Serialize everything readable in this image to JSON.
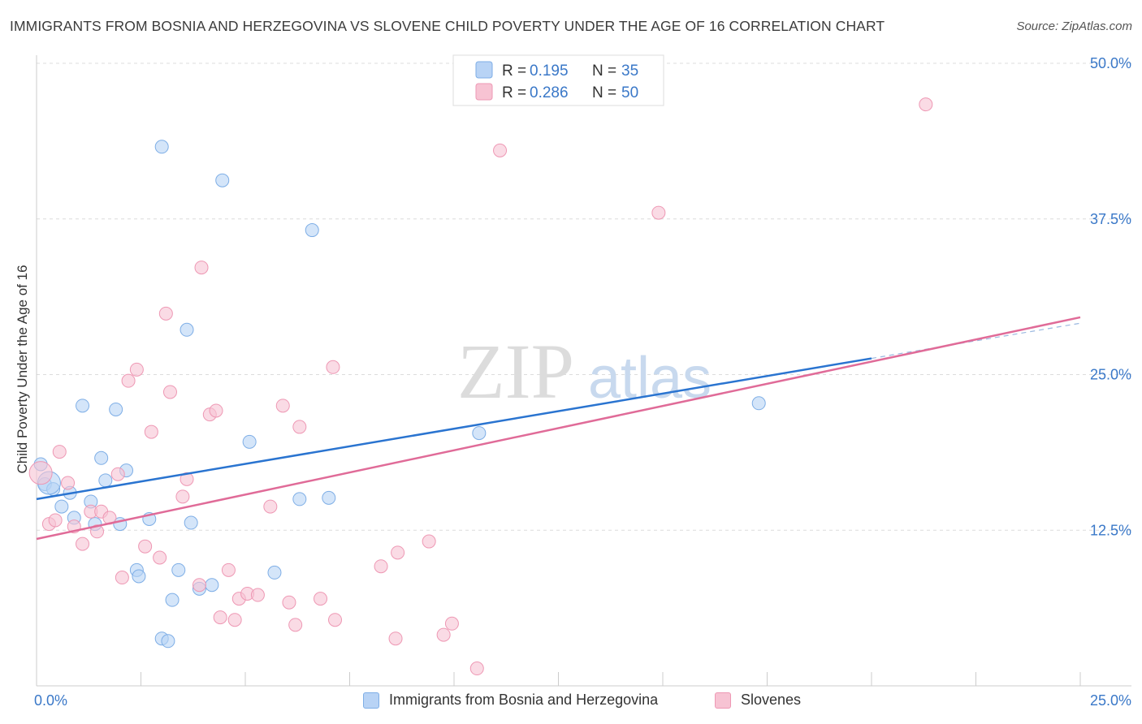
{
  "chart_data": {
    "type": "scatter",
    "title": "IMMIGRANTS FROM BOSNIA AND HERZEGOVINA VS SLOVENE CHILD POVERTY UNDER THE AGE OF 16 CORRELATION CHART",
    "source": "Source: ZipAtlas.com",
    "watermark_main": "ZIP",
    "watermark_sub": "atlas",
    "xlabel": "",
    "ylabel": "Child Poverty Under the Age of 16",
    "xlim": [
      0,
      25
    ],
    "ylim": [
      0,
      50
    ],
    "x_tick_labels": [
      {
        "value": 0,
        "label": "0.0%"
      },
      {
        "value": 25,
        "label": "25.0%"
      }
    ],
    "y_tick_labels": [
      {
        "value": 12.5,
        "label": "12.5%"
      },
      {
        "value": 25,
        "label": "25.0%"
      },
      {
        "value": 37.5,
        "label": "37.5%"
      },
      {
        "value": 50,
        "label": "50.0%"
      }
    ],
    "grid": true,
    "legend_position": "top-center",
    "series": [
      {
        "name": "Immigrants from Bosnia and Herzegovina",
        "r_label": "R =",
        "r_value": "0.195",
        "n_label": "N =",
        "n_value": "35",
        "fill": "#b8d3f5",
        "stroke": "#7eaee6",
        "line_color": "#2a74d0",
        "trend": {
          "x0": 0,
          "y0": 15.0,
          "x1": 20,
          "y1": 26.3,
          "dash_to_x": 25
        },
        "points": [
          [
            0.1,
            17.8
          ],
          [
            0.2,
            16.2
          ],
          [
            0.4,
            15.8
          ],
          [
            0.6,
            14.4
          ],
          [
            0.8,
            15.5
          ],
          [
            0.9,
            13.5
          ],
          [
            1.1,
            22.5
          ],
          [
            1.3,
            14.8
          ],
          [
            1.4,
            13.0
          ],
          [
            1.55,
            18.3
          ],
          [
            1.65,
            16.5
          ],
          [
            1.9,
            22.2
          ],
          [
            2.0,
            13.0
          ],
          [
            2.15,
            17.3
          ],
          [
            2.4,
            9.3
          ],
          [
            2.45,
            8.8
          ],
          [
            2.7,
            13.4
          ],
          [
            3.0,
            3.8
          ],
          [
            3.0,
            43.3
          ],
          [
            3.15,
            3.6
          ],
          [
            3.25,
            6.9
          ],
          [
            3.4,
            9.3
          ],
          [
            3.6,
            28.6
          ],
          [
            3.7,
            13.1
          ],
          [
            3.9,
            7.8
          ],
          [
            4.2,
            8.1
          ],
          [
            4.45,
            40.6
          ],
          [
            5.1,
            19.6
          ],
          [
            5.7,
            9.1
          ],
          [
            6.3,
            15.0
          ],
          [
            6.6,
            36.6
          ],
          [
            7.0,
            15.1
          ],
          [
            10.6,
            20.3
          ],
          [
            17.3,
            22.7
          ],
          [
            0.3,
            16.3
          ]
        ]
      },
      {
        "name": "Slovenes",
        "r_label": "R =",
        "r_value": "0.286",
        "n_label": "N =",
        "n_value": "50",
        "fill": "#f7c3d3",
        "stroke": "#ee98b4",
        "line_color": "#e06b98",
        "trend": {
          "x0": 0,
          "y0": 11.8,
          "x1": 25,
          "y1": 29.6
        },
        "points": [
          [
            0.1,
            17.1
          ],
          [
            0.3,
            13.0
          ],
          [
            0.45,
            13.3
          ],
          [
            0.55,
            18.8
          ],
          [
            0.75,
            16.3
          ],
          [
            0.9,
            12.8
          ],
          [
            1.1,
            11.4
          ],
          [
            1.3,
            14.0
          ],
          [
            1.45,
            12.4
          ],
          [
            1.55,
            14.0
          ],
          [
            1.75,
            13.5
          ],
          [
            1.95,
            17.0
          ],
          [
            2.05,
            8.7
          ],
          [
            2.2,
            24.5
          ],
          [
            2.4,
            25.4
          ],
          [
            2.6,
            11.2
          ],
          [
            2.75,
            20.4
          ],
          [
            2.95,
            10.3
          ],
          [
            3.1,
            29.9
          ],
          [
            3.2,
            23.6
          ],
          [
            3.5,
            15.2
          ],
          [
            3.6,
            16.6
          ],
          [
            3.9,
            8.1
          ],
          [
            3.95,
            33.6
          ],
          [
            4.15,
            21.8
          ],
          [
            4.3,
            22.1
          ],
          [
            4.4,
            5.5
          ],
          [
            4.6,
            9.3
          ],
          [
            4.75,
            5.3
          ],
          [
            4.85,
            7.0
          ],
          [
            5.05,
            7.4
          ],
          [
            5.3,
            7.3
          ],
          [
            5.6,
            14.4
          ],
          [
            5.9,
            22.5
          ],
          [
            6.05,
            6.7
          ],
          [
            6.2,
            4.9
          ],
          [
            6.3,
            20.8
          ],
          [
            6.8,
            7.0
          ],
          [
            7.15,
            5.3
          ],
          [
            7.1,
            25.6
          ],
          [
            8.25,
            9.6
          ],
          [
            8.6,
            3.8
          ],
          [
            8.65,
            10.7
          ],
          [
            9.4,
            11.6
          ],
          [
            9.75,
            4.1
          ],
          [
            9.95,
            5.0
          ],
          [
            10.55,
            1.4
          ],
          [
            11.1,
            43.0
          ],
          [
            14.9,
            38.0
          ],
          [
            21.3,
            46.7
          ]
        ]
      }
    ]
  }
}
